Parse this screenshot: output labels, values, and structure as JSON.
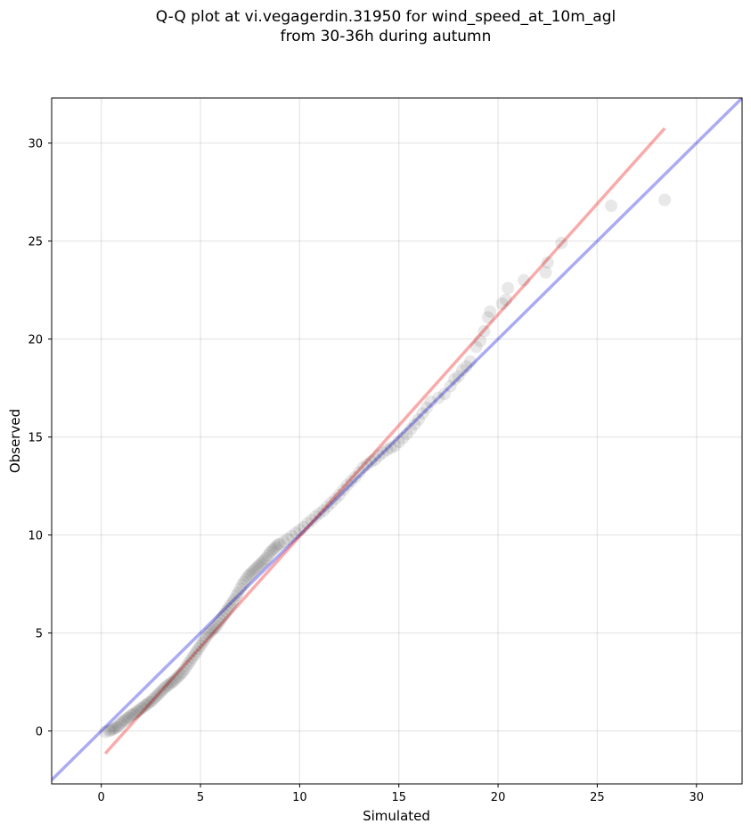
{
  "chart_data": {
    "type": "scatter",
    "title_lines": [
      "Q-Q plot at vi.vegagerdin.31950 for wind_speed_at_10m_agl",
      "from 30-36h during autumn"
    ],
    "xlabel": "Simulated",
    "ylabel": "Observed",
    "xlim": [
      -2.5,
      32.3
    ],
    "ylim": [
      -2.7,
      32.3
    ],
    "xticks": [
      0,
      5,
      10,
      15,
      20,
      25,
      30
    ],
    "yticks": [
      0,
      5,
      10,
      15,
      20,
      25,
      30
    ],
    "grid": true,
    "reference_line": {
      "name": "1:1 line",
      "color": "#0000dd",
      "from": [
        -3,
        -3
      ],
      "to": [
        33,
        33
      ]
    },
    "fit_line": {
      "name": "fit",
      "color": "#ee2222",
      "from": [
        0.2,
        -1.15
      ],
      "to": [
        28.4,
        30.75
      ]
    },
    "point_color": "#000000",
    "points": [
      [
        0.2,
        -0.05
      ],
      [
        0.4,
        0.0
      ],
      [
        0.5,
        0.05
      ],
      [
        0.6,
        0.1
      ],
      [
        0.7,
        0.15
      ],
      [
        0.8,
        0.2
      ],
      [
        0.9,
        0.3
      ],
      [
        1.0,
        0.4
      ],
      [
        1.1,
        0.5
      ],
      [
        1.2,
        0.55
      ],
      [
        1.3,
        0.65
      ],
      [
        1.4,
        0.7
      ],
      [
        1.5,
        0.8
      ],
      [
        1.6,
        0.85
      ],
      [
        1.7,
        0.9
      ],
      [
        1.8,
        1.0
      ],
      [
        1.9,
        1.05
      ],
      [
        2.0,
        1.15
      ],
      [
        2.1,
        1.2
      ],
      [
        2.2,
        1.3
      ],
      [
        2.3,
        1.35
      ],
      [
        2.4,
        1.45
      ],
      [
        2.5,
        1.5
      ],
      [
        2.6,
        1.6
      ],
      [
        2.7,
        1.7
      ],
      [
        2.8,
        1.8
      ],
      [
        2.9,
        1.9
      ],
      [
        3.0,
        2.0
      ],
      [
        3.1,
        2.1
      ],
      [
        3.2,
        2.2
      ],
      [
        3.3,
        2.3
      ],
      [
        3.4,
        2.35
      ],
      [
        3.5,
        2.45
      ],
      [
        3.6,
        2.5
      ],
      [
        3.7,
        2.6
      ],
      [
        3.8,
        2.7
      ],
      [
        3.9,
        2.8
      ],
      [
        4.0,
        2.9
      ],
      [
        4.1,
        3.0
      ],
      [
        4.2,
        3.15
      ],
      [
        4.3,
        3.3
      ],
      [
        4.4,
        3.45
      ],
      [
        4.5,
        3.6
      ],
      [
        4.6,
        3.75
      ],
      [
        4.7,
        3.9
      ],
      [
        4.8,
        4.05
      ],
      [
        4.9,
        4.2
      ],
      [
        5.0,
        4.35
      ],
      [
        5.1,
        4.5
      ],
      [
        5.2,
        4.65
      ],
      [
        5.3,
        4.8
      ],
      [
        5.4,
        4.95
      ],
      [
        5.5,
        5.05
      ],
      [
        5.6,
        5.15
      ],
      [
        5.7,
        5.25
      ],
      [
        5.8,
        5.35
      ],
      [
        5.9,
        5.5
      ],
      [
        6.0,
        5.65
      ],
      [
        6.1,
        5.8
      ],
      [
        6.2,
        5.95
      ],
      [
        6.3,
        6.1
      ],
      [
        6.4,
        6.25
      ],
      [
        6.5,
        6.4
      ],
      [
        6.6,
        6.55
      ],
      [
        6.7,
        6.7
      ],
      [
        6.8,
        6.9
      ],
      [
        6.9,
        7.05
      ],
      [
        7.0,
        7.25
      ],
      [
        7.1,
        7.45
      ],
      [
        7.2,
        7.6
      ],
      [
        7.3,
        7.75
      ],
      [
        7.4,
        7.9
      ],
      [
        7.5,
        8.0
      ],
      [
        7.6,
        8.1
      ],
      [
        7.7,
        8.2
      ],
      [
        7.8,
        8.3
      ],
      [
        7.9,
        8.4
      ],
      [
        8.0,
        8.5
      ],
      [
        8.1,
        8.6
      ],
      [
        8.2,
        8.7
      ],
      [
        8.3,
        8.8
      ],
      [
        8.4,
        8.95
      ],
      [
        8.5,
        9.1
      ],
      [
        8.6,
        9.2
      ],
      [
        8.7,
        9.3
      ],
      [
        8.8,
        9.4
      ],
      [
        8.9,
        9.5
      ],
      [
        9.0,
        9.55
      ],
      [
        9.2,
        9.65
      ],
      [
        9.4,
        9.8
      ],
      [
        9.6,
        9.95
      ],
      [
        9.8,
        10.1
      ],
      [
        10.0,
        10.25
      ],
      [
        10.2,
        10.4
      ],
      [
        10.4,
        10.6
      ],
      [
        10.6,
        10.75
      ],
      [
        10.8,
        10.95
      ],
      [
        11.0,
        11.1
      ],
      [
        11.2,
        11.25
      ],
      [
        11.4,
        11.45
      ],
      [
        11.6,
        11.65
      ],
      [
        11.8,
        11.85
      ],
      [
        12.0,
        12.05
      ],
      [
        12.2,
        12.3
      ],
      [
        12.4,
        12.55
      ],
      [
        12.6,
        12.75
      ],
      [
        12.8,
        12.95
      ],
      [
        13.0,
        13.2
      ],
      [
        13.2,
        13.45
      ],
      [
        13.4,
        13.6
      ],
      [
        13.6,
        13.75
      ],
      [
        13.8,
        13.85
      ],
      [
        14.0,
        14.05
      ],
      [
        14.2,
        14.2
      ],
      [
        14.4,
        14.35
      ],
      [
        14.6,
        14.45
      ],
      [
        14.8,
        14.55
      ],
      [
        15.0,
        14.75
      ],
      [
        15.2,
        14.95
      ],
      [
        15.4,
        15.15
      ],
      [
        15.6,
        15.4
      ],
      [
        15.8,
        15.65
      ],
      [
        16.0,
        15.9
      ],
      [
        16.2,
        16.2
      ],
      [
        16.4,
        16.5
      ],
      [
        16.6,
        16.8
      ],
      [
        17.0,
        17.0
      ],
      [
        17.3,
        17.2
      ],
      [
        17.6,
        17.6
      ],
      [
        17.8,
        17.95
      ],
      [
        18.0,
        18.1
      ],
      [
        18.2,
        18.4
      ],
      [
        18.4,
        18.6
      ],
      [
        18.6,
        18.85
      ],
      [
        18.9,
        19.6
      ],
      [
        19.1,
        19.9
      ],
      [
        19.3,
        20.4
      ],
      [
        19.5,
        21.1
      ],
      [
        19.6,
        21.4
      ],
      [
        20.2,
        21.8
      ],
      [
        20.4,
        22.0
      ],
      [
        20.5,
        22.6
      ],
      [
        21.3,
        23.0
      ],
      [
        22.4,
        23.4
      ],
      [
        22.5,
        23.9
      ],
      [
        23.2,
        24.9
      ],
      [
        25.7,
        26.8
      ],
      [
        28.4,
        27.1
      ]
    ]
  }
}
